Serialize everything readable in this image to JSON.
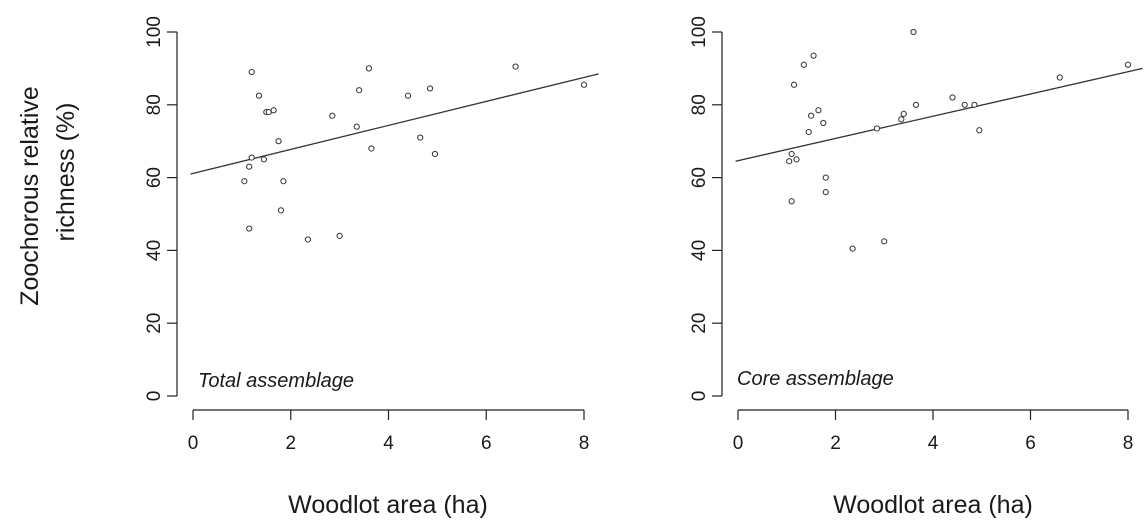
{
  "chart_data": [
    {
      "type": "scatter",
      "annotation": "Total assemblage",
      "xlabel": "Woodlot area (ha)",
      "ylabel": [
        "Zoochorous relative",
        "richness (%)"
      ],
      "xlim": [
        0,
        8
      ],
      "ylim": [
        0,
        100
      ],
      "xticks": [
        "0",
        "2",
        "4",
        "6",
        "8"
      ],
      "yticks": [
        "0",
        "20",
        "40",
        "60",
        "80",
        "100"
      ],
      "points": [
        [
          1.05,
          59
        ],
        [
          1.15,
          46
        ],
        [
          1.15,
          63
        ],
        [
          1.2,
          89
        ],
        [
          1.2,
          65.5
        ],
        [
          1.35,
          82.5
        ],
        [
          1.45,
          65
        ],
        [
          1.5,
          78
        ],
        [
          1.55,
          78
        ],
        [
          1.65,
          78.5
        ],
        [
          1.75,
          70
        ],
        [
          1.8,
          51
        ],
        [
          1.85,
          59
        ],
        [
          2.35,
          43
        ],
        [
          2.85,
          77
        ],
        [
          3.0,
          44
        ],
        [
          3.35,
          74
        ],
        [
          3.4,
          84
        ],
        [
          3.6,
          90
        ],
        [
          3.65,
          68
        ],
        [
          4.4,
          82.5
        ],
        [
          4.65,
          71
        ],
        [
          4.85,
          84.5
        ],
        [
          4.95,
          66.5
        ],
        [
          6.6,
          90.5
        ],
        [
          8.0,
          85.5
        ]
      ],
      "regression": {
        "x": [
          -0.05,
          8.3
        ],
        "y": [
          61,
          88.5
        ]
      }
    },
    {
      "type": "scatter",
      "annotation": "Core assemblage",
      "xlabel": "Woodlot area (ha)",
      "xlim": [
        0,
        8
      ],
      "ylim": [
        0,
        100
      ],
      "xticks": [
        "0",
        "2",
        "4",
        "6",
        "8"
      ],
      "yticks": [
        "0",
        "20",
        "40",
        "60",
        "80",
        "100"
      ],
      "points": [
        [
          1.05,
          64.5
        ],
        [
          1.1,
          53.5
        ],
        [
          1.1,
          66.5
        ],
        [
          1.15,
          85.5
        ],
        [
          1.2,
          65
        ],
        [
          1.35,
          91
        ],
        [
          1.45,
          72.5
        ],
        [
          1.5,
          77
        ],
        [
          1.55,
          93.5
        ],
        [
          1.65,
          78.5
        ],
        [
          1.75,
          75
        ],
        [
          1.8,
          60
        ],
        [
          1.8,
          56
        ],
        [
          2.35,
          40.5
        ],
        [
          2.85,
          73.5
        ],
        [
          3.0,
          42.5
        ],
        [
          3.35,
          76
        ],
        [
          3.4,
          77.5
        ],
        [
          3.6,
          100
        ],
        [
          3.65,
          80
        ],
        [
          4.4,
          82
        ],
        [
          4.65,
          80
        ],
        [
          4.85,
          80
        ],
        [
          4.95,
          73
        ],
        [
          6.6,
          87.5
        ],
        [
          8.0,
          91
        ]
      ],
      "regression": {
        "x": [
          -0.05,
          8.3
        ],
        "y": [
          64.5,
          90
        ]
      }
    }
  ]
}
